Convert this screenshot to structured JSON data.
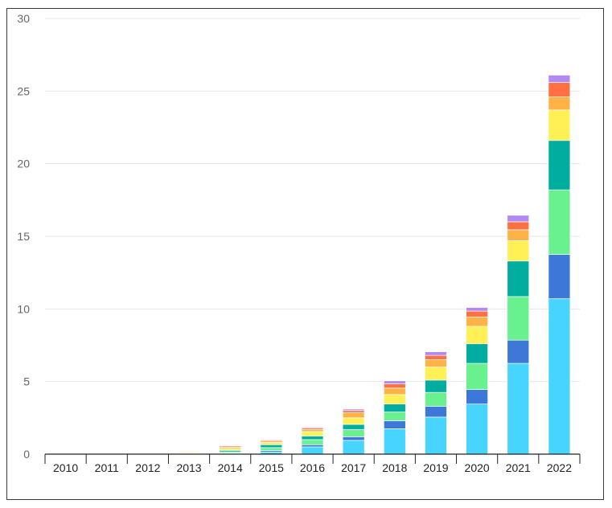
{
  "chart_data": {
    "type": "bar",
    "stacked": true,
    "categories": [
      "2010",
      "2011",
      "2012",
      "2013",
      "2014",
      "2015",
      "2016",
      "2017",
      "2018",
      "2019",
      "2020",
      "2021",
      "2022"
    ],
    "ylim": [
      0,
      30
    ],
    "yticks": [
      0,
      5,
      10,
      15,
      20,
      25,
      30
    ],
    "grid": true,
    "series": [
      {
        "color": "#47d4ff",
        "values": [
          0,
          0,
          0,
          0.02,
          0.05,
          0.15,
          0.5,
          0.95,
          1.75,
          2.55,
          3.45,
          6.25,
          10.7
        ]
      },
      {
        "color": "#3d78d8",
        "values": [
          0,
          0,
          0,
          0.01,
          0.03,
          0.1,
          0.15,
          0.25,
          0.55,
          0.75,
          1.0,
          1.6,
          3.05
        ]
      },
      {
        "color": "#69f08f",
        "values": [
          0,
          0,
          0,
          0.03,
          0.08,
          0.2,
          0.35,
          0.5,
          0.6,
          0.95,
          1.8,
          3.0,
          4.45
        ]
      },
      {
        "color": "#00ad9f",
        "values": [
          0,
          0,
          0,
          0.02,
          0.1,
          0.2,
          0.25,
          0.35,
          0.55,
          0.85,
          1.35,
          2.45,
          3.4
        ]
      },
      {
        "color": "#fff055",
        "values": [
          0,
          0,
          0,
          0.06,
          0.12,
          0.15,
          0.3,
          0.45,
          0.65,
          0.9,
          1.2,
          1.4,
          2.1
        ]
      },
      {
        "color": "#ffb347",
        "values": [
          0,
          0,
          0,
          0.05,
          0.1,
          0.1,
          0.15,
          0.35,
          0.45,
          0.5,
          0.65,
          0.75,
          0.9
        ]
      },
      {
        "color": "#ff7043",
        "values": [
          0,
          0,
          0,
          0.04,
          0.08,
          0.07,
          0.1,
          0.15,
          0.3,
          0.3,
          0.4,
          0.55,
          1.0
        ]
      },
      {
        "color": "#b388f2",
        "values": [
          0,
          0,
          0,
          0.02,
          0.03,
          0.05,
          0.06,
          0.1,
          0.2,
          0.25,
          0.25,
          0.45,
          0.5
        ]
      }
    ]
  }
}
